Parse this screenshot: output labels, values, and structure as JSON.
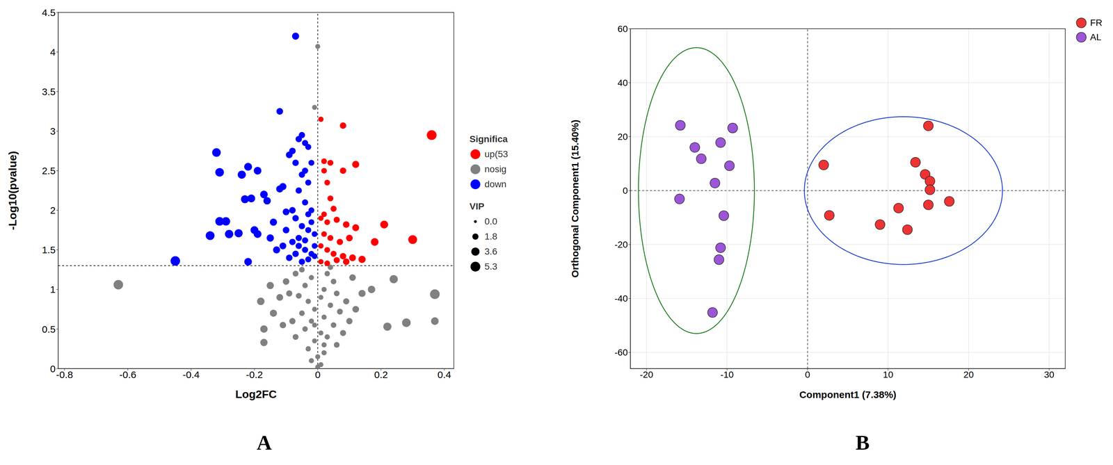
{
  "chart_data": [
    {
      "type": "scatter",
      "panel_label": "A",
      "x_label": "Log2FC",
      "y_label": "-Log10(pvalue)",
      "xlim": [
        -0.82,
        0.43
      ],
      "ylim": [
        0,
        4.5
      ],
      "xticks": [
        -0.8,
        -0.6,
        -0.4,
        -0.2,
        0,
        0.2,
        0.4
      ],
      "yticks": [
        0,
        0.5,
        1,
        1.5,
        2,
        2.5,
        3,
        3.5,
        4,
        4.5
      ],
      "grid": false,
      "legend": "right",
      "legend_title": "Significa",
      "reference_lines": {
        "x": [
          0
        ],
        "y": [
          1.3
        ]
      },
      "size_legend": {
        "title": "VIP",
        "values": [
          {
            "value": 0,
            "label": "0.0"
          },
          1.8,
          3.6,
          5.3
        ]
      },
      "series": [
        {
          "name": "up(53",
          "color": "#ff0000",
          "x": [
            0.36,
            0.08,
            0.01,
            0.02,
            0.04,
            0.12,
            0.08,
            0.02,
            0.03,
            0.04,
            0.05,
            0.02,
            0.01,
            0.03,
            0.06,
            0.09,
            0.12,
            0.21,
            0.3,
            0.18,
            0.1,
            0.07,
            0.04,
            0.02,
            0.01,
            0.03,
            0.05,
            0.08,
            0.11,
            0.14,
            0.01,
            0.03,
            0.06,
            0.09
          ],
          "y": [
            2.95,
            3.07,
            3.15,
            2.62,
            2.6,
            2.58,
            2.5,
            2.5,
            2.35,
            2.15,
            2.02,
            1.95,
            1.9,
            1.85,
            1.88,
            1.82,
            1.78,
            1.82,
            1.63,
            1.6,
            1.65,
            1.6,
            1.65,
            1.7,
            1.55,
            1.5,
            1.45,
            1.42,
            1.4,
            1.38,
            1.35,
            1.33,
            1.37,
            1.35
          ],
          "vip": [
            5.3,
            2.0,
            1.2,
            1.4,
            1.6,
            2.5,
            2.0,
            1.4,
            1.5,
            1.6,
            1.7,
            1.4,
            1.2,
            1.5,
            1.8,
            2.1,
            2.4,
            3.2,
            4.2,
            3.0,
            2.2,
            1.9,
            1.6,
            1.4,
            1.2,
            1.5,
            1.7,
            2.0,
            2.3,
            2.6,
            1.2,
            1.5,
            1.8,
            2.1
          ]
        },
        {
          "name": "nosig",
          "color": "#808080",
          "x": [
            0.0,
            -0.01,
            -0.63,
            0.37,
            0.37,
            0.28,
            0.22,
            0.24,
            0.17,
            0.14,
            -0.17,
            -0.17,
            -0.14,
            -0.12,
            -0.1,
            -0.18,
            -0.15,
            -0.08,
            -0.05,
            0.03,
            -0.02,
            0.05,
            -0.04,
            0.02,
            0.06,
            -0.06,
            0.01,
            -0.03,
            0.04,
            -0.01,
            0.07,
            -0.05,
            0.02,
            -0.02,
            0.05,
            -0.04,
            0.01,
            0.03,
            -0.01,
            0.06,
            -0.03,
            0.02,
            0.0,
            -0.02,
            0.01,
            0.0,
            0.09,
            0.1,
            -0.09,
            -0.07,
            0.08,
            0.12,
            -0.11,
            0.04,
            -0.07,
            0.11,
            0.02,
            -0.01
          ],
          "y": [
            4.07,
            3.3,
            1.06,
            0.94,
            0.6,
            0.58,
            0.53,
            1.13,
            1.0,
            0.95,
            0.5,
            0.33,
            0.7,
            0.9,
            1.1,
            0.85,
            1.05,
            0.6,
            1.25,
            1.2,
            1.15,
            1.1,
            1.05,
            1.0,
            0.95,
            0.92,
            0.9,
            0.85,
            0.8,
            0.75,
            0.72,
            0.7,
            0.65,
            0.6,
            0.55,
            0.5,
            0.45,
            0.4,
            0.35,
            0.3,
            0.25,
            0.2,
            0.15,
            0.1,
            0.05,
            0.02,
            0.85,
            0.6,
            0.95,
            0.4,
            0.45,
            0.75,
            0.55,
            1.28,
            1.2,
            1.15,
            0.3,
            0.55
          ],
          "vip": [
            1.0,
            1.0,
            5.0,
            5.2,
            3.0,
            4.0,
            3.5,
            3.6,
            2.8,
            2.5,
            2.8,
            2.7,
            2.5,
            2.3,
            2.1,
            2.9,
            2.6,
            1.9,
            1.4,
            1.3,
            1.1,
            1.4,
            1.3,
            1.1,
            1.5,
            1.5,
            1.0,
            1.2,
            1.3,
            1.0,
            1.6,
            1.4,
            1.1,
            1.1,
            1.4,
            1.3,
            1.0,
            1.2,
            1.0,
            1.5,
            1.2,
            1.1,
            1.0,
            1.1,
            1.0,
            1.0,
            1.8,
            1.9,
            1.8,
            1.6,
            1.7,
            2.2,
            2.0,
            1.3,
            1.6,
            2.1,
            1.1,
            1.0
          ]
        },
        {
          "name": "down",
          "color": "#0000ff",
          "x": [
            -0.07,
            -0.12,
            -0.32,
            -0.31,
            -0.24,
            -0.22,
            -0.19,
            -0.21,
            -0.23,
            -0.17,
            -0.16,
            -0.11,
            -0.12,
            -0.31,
            -0.29,
            -0.34,
            -0.28,
            -0.25,
            -0.2,
            -0.19,
            -0.45,
            -0.22,
            -0.14,
            -0.13,
            -0.15,
            -0.1,
            -0.08,
            -0.09,
            -0.08,
            -0.06,
            -0.05,
            -0.04,
            -0.03,
            -0.07,
            -0.05,
            -0.04,
            -0.03,
            -0.02,
            -0.06,
            -0.04,
            -0.02,
            -0.07,
            -0.05,
            -0.03,
            -0.01,
            -0.08,
            -0.06,
            -0.04,
            -0.02,
            -0.09,
            -0.05,
            -0.03,
            -0.01,
            -0.06,
            -0.02,
            -0.1,
            -0.11,
            -0.07,
            -0.04,
            -0.01,
            -0.03
          ],
          "y": [
            4.2,
            3.25,
            2.73,
            2.48,
            2.45,
            2.55,
            2.5,
            2.15,
            2.14,
            2.2,
            2.12,
            2.3,
            2.27,
            1.86,
            1.86,
            1.68,
            1.7,
            1.71,
            1.75,
            1.7,
            1.36,
            1.35,
            1.85,
            1.5,
            1.65,
            1.98,
            2.0,
            2.7,
            2.75,
            2.9,
            2.95,
            2.85,
            2.8,
            2.6,
            2.45,
            2.5,
            2.35,
            2.6,
            2.25,
            2.1,
            2.0,
            1.9,
            1.8,
            1.75,
            1.7,
            1.6,
            1.55,
            1.5,
            1.45,
            1.4,
            1.35,
            1.38,
            1.42,
            1.65,
            1.85,
            1.75,
            1.55,
            1.45,
            1.62,
            1.55,
            1.95
          ],
          "vip": [
            2.5,
            2.2,
            4.0,
            4.0,
            3.5,
            3.2,
            3.0,
            3.2,
            3.3,
            3.0,
            2.8,
            2.5,
            2.5,
            4.0,
            3.8,
            4.2,
            3.7,
            3.5,
            3.2,
            3.1,
            5.0,
            3.0,
            2.6,
            2.5,
            2.7,
            2.3,
            2.1,
            2.2,
            2.1,
            2.0,
            1.9,
            1.8,
            1.7,
            2.0,
            1.9,
            1.8,
            1.7,
            1.6,
            1.9,
            1.8,
            1.6,
            2.0,
            1.9,
            1.7,
            1.5,
            2.0,
            1.9,
            1.8,
            1.6,
            2.1,
            1.9,
            1.7,
            1.5,
            1.9,
            1.6,
            2.2,
            2.3,
            2.0,
            1.8,
            1.5,
            1.7
          ]
        }
      ]
    },
    {
      "type": "scatter",
      "panel_label": "B",
      "x_label": "Component1 (7.38%)",
      "y_label": "Orthogonal Component1 (15.40%)",
      "xlim": [
        -22,
        32
      ],
      "ylim": [
        -66,
        60
      ],
      "xticks": [
        -20,
        -10,
        0,
        10,
        20,
        30
      ],
      "yticks": [
        -60,
        -40,
        -20,
        0,
        20,
        40,
        60
      ],
      "grid": true,
      "legend": "top-right",
      "reference_lines": {
        "x": [
          0
        ],
        "y": [
          0
        ]
      },
      "series": [
        {
          "name": "FR",
          "color": "#ee3333",
          "x": [
            15,
            2,
            13.4,
            14.6,
            15.2,
            15.2,
            17.6,
            15,
            11.3,
            2.7,
            9,
            12.4
          ],
          "y": [
            24,
            9.5,
            10.5,
            6,
            3.5,
            0.3,
            -4,
            -5.3,
            -6.5,
            -9.2,
            -12.6,
            -14.5
          ],
          "ellipse": {
            "center": [
              11.9,
              0
            ],
            "rx": 12.3,
            "ry": 27.4,
            "color": "#1f3fcf"
          }
        },
        {
          "name": "AL",
          "color": "#9b55d6",
          "x": [
            -15.8,
            -9.3,
            -14,
            -10.8,
            -13.2,
            -9.7,
            -11.5,
            -15.9,
            -10.4,
            -10.8,
            -11,
            -11.8
          ],
          "y": [
            24.2,
            23.2,
            16,
            17.8,
            11.8,
            9.2,
            2.8,
            -3.1,
            -9.3,
            -21.2,
            -25.6,
            -45.2
          ],
          "ellipse": {
            "center": [
              -13.8,
              0
            ],
            "rx": 7.2,
            "ry": 53,
            "color": "#1a7a1a"
          }
        }
      ]
    }
  ]
}
